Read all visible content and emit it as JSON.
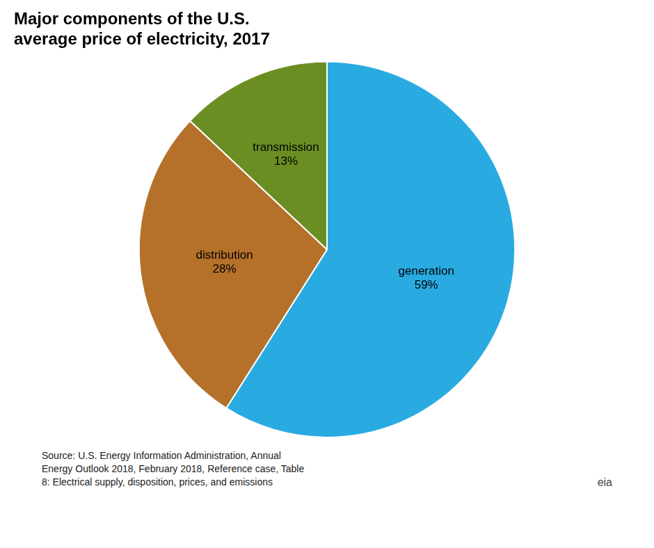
{
  "chart_data": {
    "type": "pie",
    "title": "Major components of the U.S.\naverage price of electricity, 2017",
    "categories": [
      "generation",
      "distribution",
      "transmission"
    ],
    "values": [
      59,
      28,
      13
    ],
    "value_labels": [
      "59%",
      "28%",
      "13%"
    ],
    "colors": [
      "#29ABE2",
      "#B5712A",
      "#6B8E23"
    ],
    "data_labels": true,
    "legend": false,
    "annotations": [
      "Source: U.S. Energy Information Administration, Annual\nEnergy Outlook 2018, February 2018, Reference case, Table\n8: Electrical supply, disposition, prices, and emissions",
      "eia"
    ]
  }
}
